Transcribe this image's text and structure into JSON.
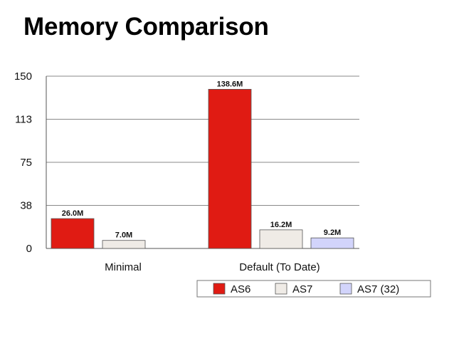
{
  "slide": {
    "title": "Memory Comparison"
  },
  "chart_data": {
    "type": "bar",
    "categories": [
      "Minimal",
      "Default (To Date)"
    ],
    "series": [
      {
        "name": "AS6",
        "values": [
          26.0,
          138.6
        ],
        "labels": [
          "26.0M",
          "138.6M"
        ],
        "color": "#e01b13"
      },
      {
        "name": "AS7",
        "values": [
          7.0,
          16.2
        ],
        "labels": [
          "7.0M",
          "16.2M"
        ],
        "color": "#efebe6"
      },
      {
        "name": "AS7 (32)",
        "values": [
          null,
          9.2
        ],
        "labels": [
          null,
          "9.2M"
        ],
        "color": "#d2d4fb"
      }
    ],
    "yticks": [
      {
        "value": 0,
        "label": "0"
      },
      {
        "value": 37.5,
        "label": "38"
      },
      {
        "value": 75,
        "label": "75"
      },
      {
        "value": 112.5,
        "label": "113"
      },
      {
        "value": 150,
        "label": "150"
      }
    ],
    "ylim": [
      0,
      150
    ],
    "grid": true,
    "legend_position": "bottom-right"
  }
}
